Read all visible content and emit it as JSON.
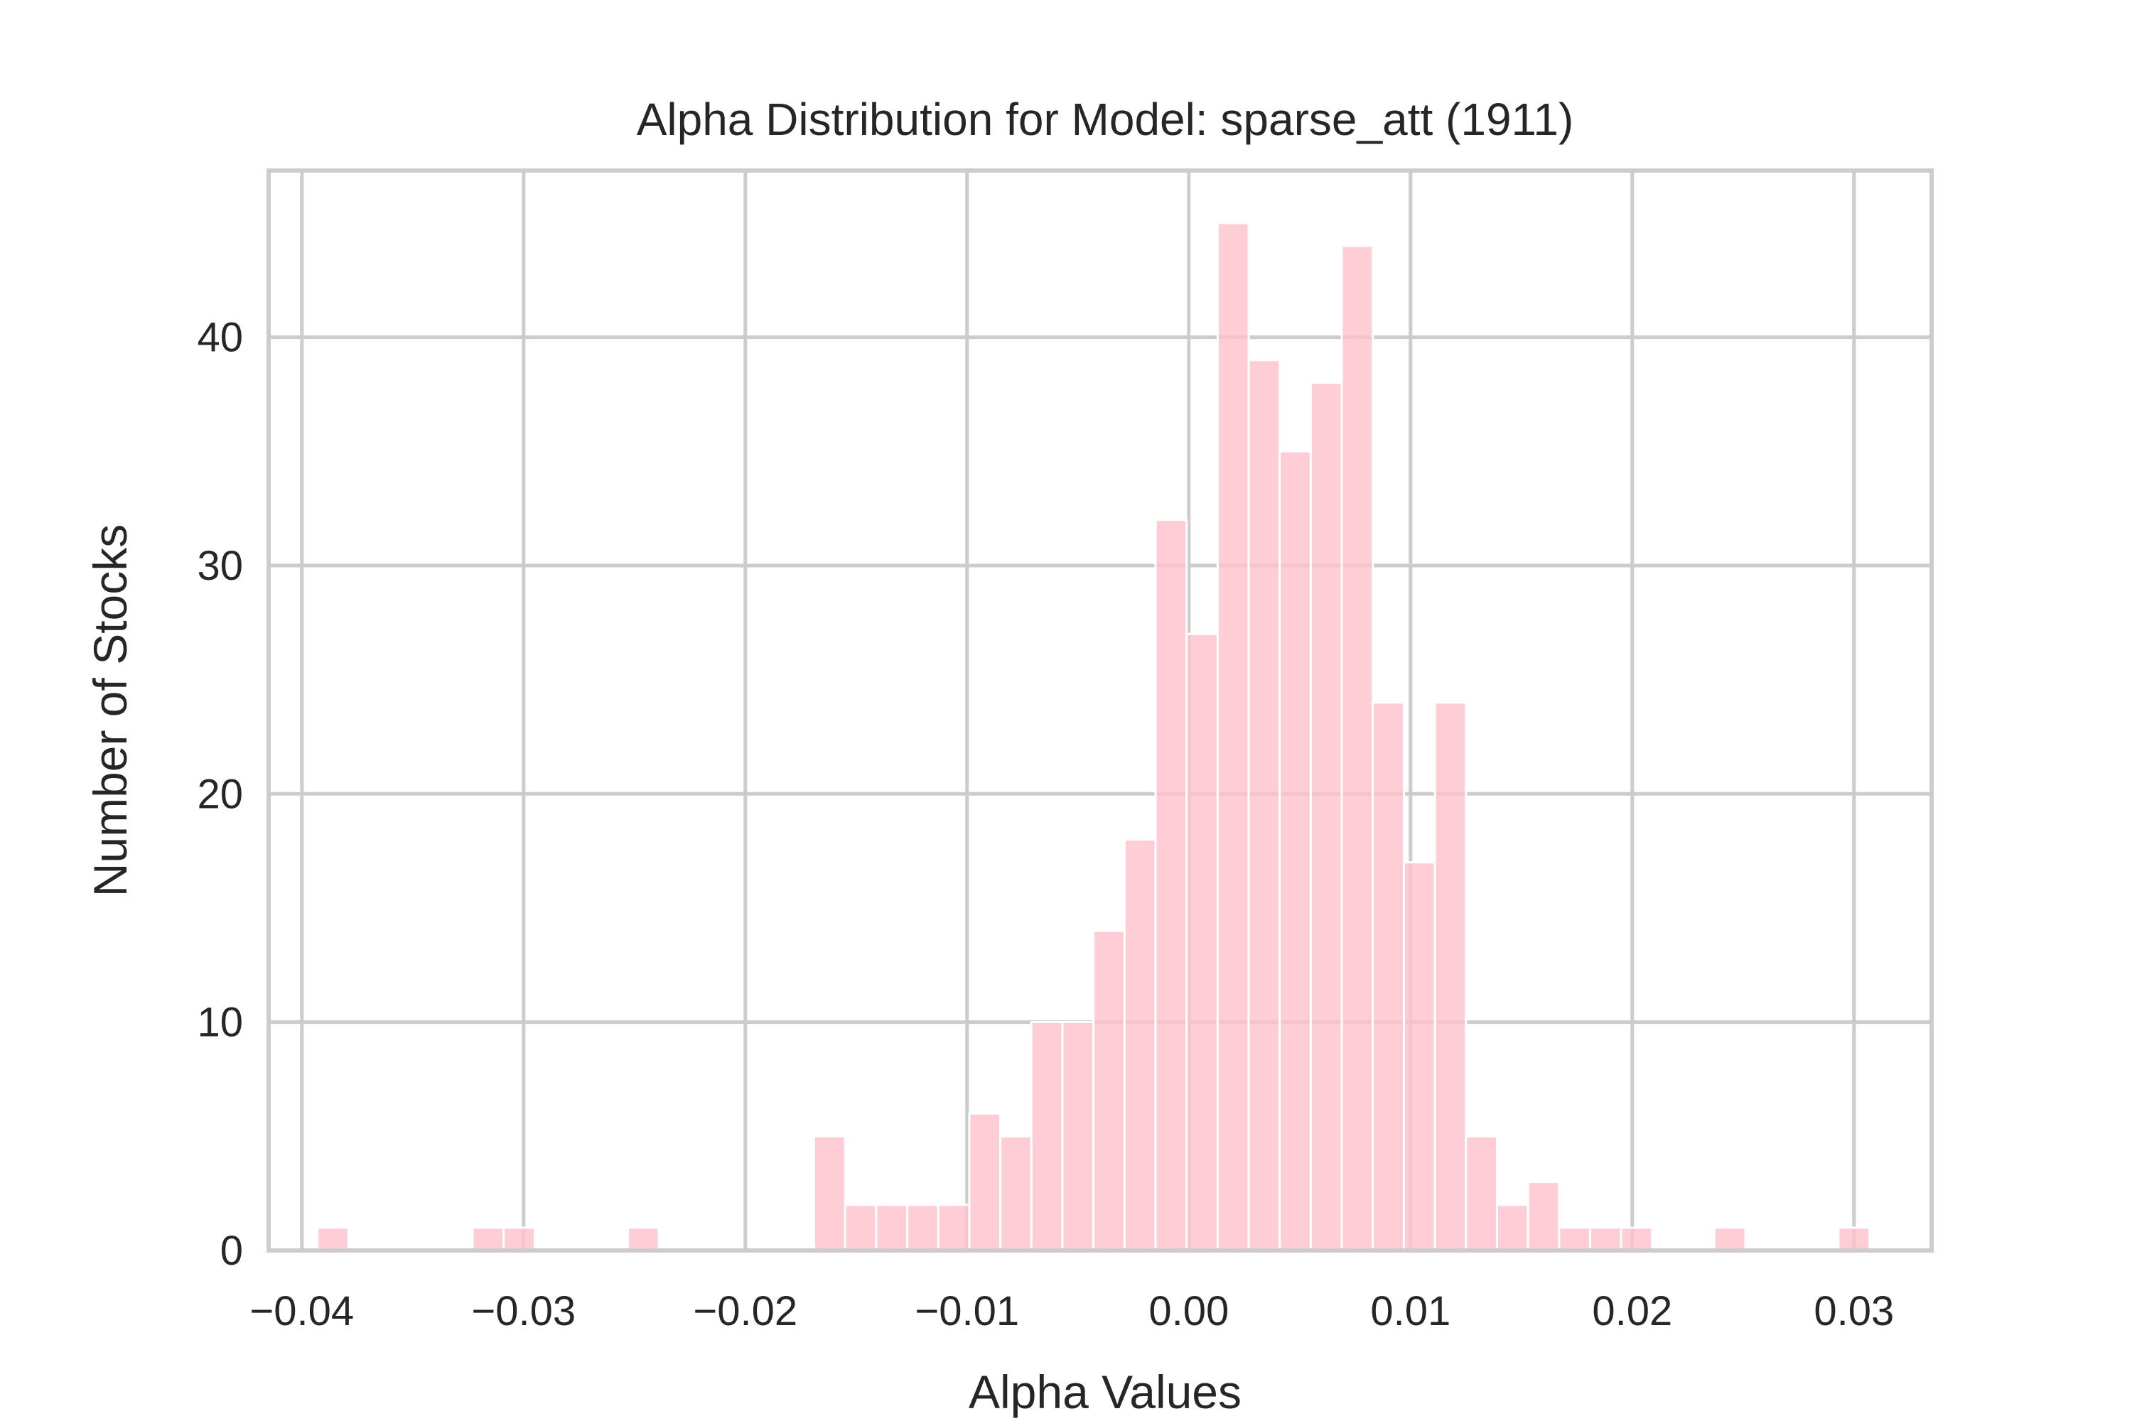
{
  "chart_data": {
    "type": "bar",
    "subtype": "histogram",
    "title": "Alpha Distribution for Model: sparse_att (1911)",
    "xlabel": "Alpha Values",
    "ylabel": "Number of Stocks",
    "xlim": [
      -0.0415,
      0.0335
    ],
    "ylim": [
      0,
      47.3
    ],
    "grid": true,
    "bar_color": "#ffc0cb",
    "bar_opacity": 0.8,
    "bin_width": 0.0014,
    "x_ticks": [
      {
        "value": -0.04,
        "label": "−0.04"
      },
      {
        "value": -0.03,
        "label": "−0.03"
      },
      {
        "value": -0.02,
        "label": "−0.02"
      },
      {
        "value": -0.01,
        "label": "−0.01"
      },
      {
        "value": 0.0,
        "label": "0.00"
      },
      {
        "value": 0.01,
        "label": "0.01"
      },
      {
        "value": 0.02,
        "label": "0.02"
      },
      {
        "value": 0.03,
        "label": "0.03"
      }
    ],
    "y_ticks": [
      {
        "value": 0,
        "label": "0"
      },
      {
        "value": 10,
        "label": "10"
      },
      {
        "value": 20,
        "label": "20"
      },
      {
        "value": 30,
        "label": "30"
      },
      {
        "value": 40,
        "label": "40"
      }
    ],
    "bins": [
      {
        "start": -0.0393,
        "count": 1
      },
      {
        "start": -0.0323,
        "count": 1
      },
      {
        "start": -0.0309,
        "count": 1
      },
      {
        "start": -0.0253,
        "count": 1
      },
      {
        "start": -0.0169,
        "count": 5
      },
      {
        "start": -0.0155,
        "count": 2
      },
      {
        "start": -0.0141,
        "count": 2
      },
      {
        "start": -0.0127,
        "count": 2
      },
      {
        "start": -0.0113,
        "count": 2
      },
      {
        "start": -0.0099,
        "count": 6
      },
      {
        "start": -0.0085,
        "count": 5
      },
      {
        "start": -0.0071,
        "count": 10
      },
      {
        "start": -0.0057,
        "count": 10
      },
      {
        "start": -0.0043,
        "count": 14
      },
      {
        "start": -0.0029,
        "count": 18
      },
      {
        "start": -0.0015,
        "count": 32
      },
      {
        "start": -0.0001,
        "count": 27
      },
      {
        "start": 0.0013,
        "count": 45
      },
      {
        "start": 0.0027,
        "count": 39
      },
      {
        "start": 0.0041,
        "count": 35
      },
      {
        "start": 0.0055,
        "count": 38
      },
      {
        "start": 0.0069,
        "count": 44
      },
      {
        "start": 0.0083,
        "count": 24
      },
      {
        "start": 0.0097,
        "count": 17
      },
      {
        "start": 0.0111,
        "count": 24
      },
      {
        "start": 0.0125,
        "count": 5
      },
      {
        "start": 0.0139,
        "count": 2
      },
      {
        "start": 0.0153,
        "count": 3
      },
      {
        "start": 0.0167,
        "count": 1
      },
      {
        "start": 0.0181,
        "count": 1
      },
      {
        "start": 0.0195,
        "count": 1
      },
      {
        "start": 0.0237,
        "count": 1
      },
      {
        "start": 0.0293,
        "count": 1
      }
    ]
  }
}
